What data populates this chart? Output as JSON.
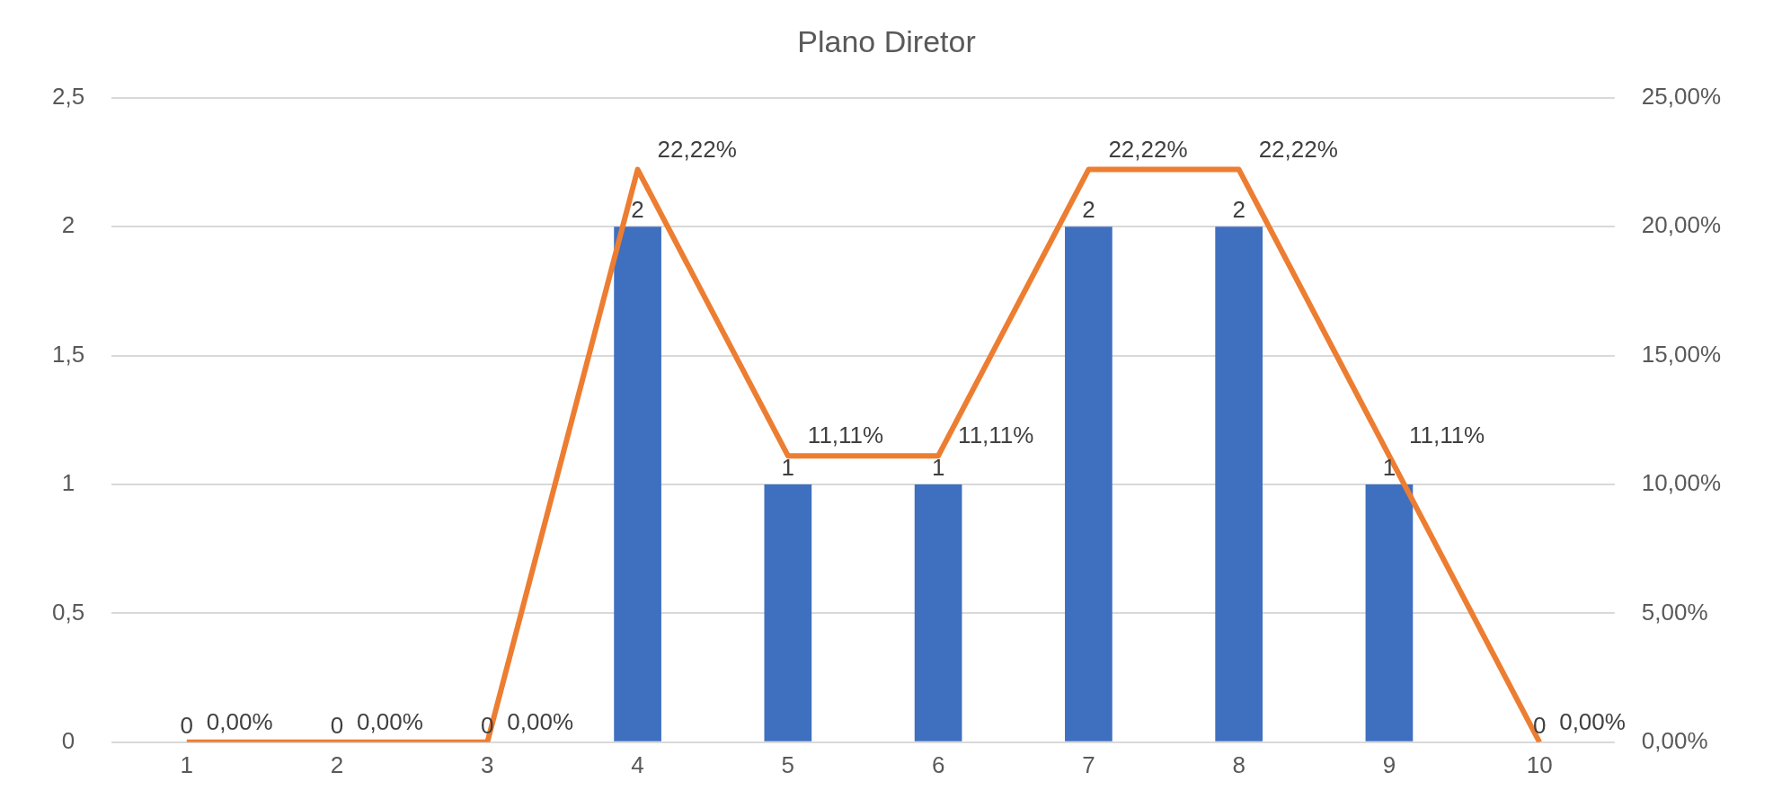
{
  "chart_data": {
    "type": "bar",
    "title": "Plano Diretor",
    "categories": [
      "1",
      "2",
      "3",
      "4",
      "5",
      "6",
      "7",
      "8",
      "9",
      "10"
    ],
    "series": [
      {
        "color": "#3f6fbf",
        "values": [
          0,
          0,
          0,
          2,
          1,
          1,
          2,
          2,
          1,
          0
        ],
        "value_labels": [
          "0",
          "0",
          "0",
          "2",
          "1",
          "1",
          "2",
          "2",
          "1",
          "0"
        ]
      },
      {
        "type": "line",
        "axis": "y2",
        "color": "#ed7d31",
        "values": [
          0,
          0,
          0,
          22.22,
          11.11,
          11.11,
          22.22,
          22.22,
          11.11,
          0
        ],
        "value_labels": [
          "0,00%",
          "0,00%",
          "0,00%",
          "22,22%",
          "11,11%",
          "11,11%",
          "22,22%",
          "22,22%",
          "11,11%",
          "0,00%"
        ]
      }
    ],
    "ylim": [
      0,
      2.5
    ],
    "yticks": [
      0,
      {
        "value": 0.5,
        "label": "0,5"
      },
      1,
      {
        "value": 1.5,
        "label": "1,5"
      },
      2,
      {
        "value": 2.5,
        "label": "2,5"
      }
    ],
    "y2lim": [
      0,
      25
    ],
    "y2ticks": [
      {
        "value": 0,
        "label": "0,00%"
      },
      {
        "value": 5,
        "label": "5,00%"
      },
      {
        "value": 10,
        "label": "10,00%"
      },
      {
        "value": 15,
        "label": "15,00%"
      },
      {
        "value": 20,
        "label": "20,00%"
      },
      {
        "value": 25,
        "label": "25,00%"
      }
    ],
    "grid": "y",
    "legend": false,
    "marker": "none",
    "line_style": "solid"
  }
}
